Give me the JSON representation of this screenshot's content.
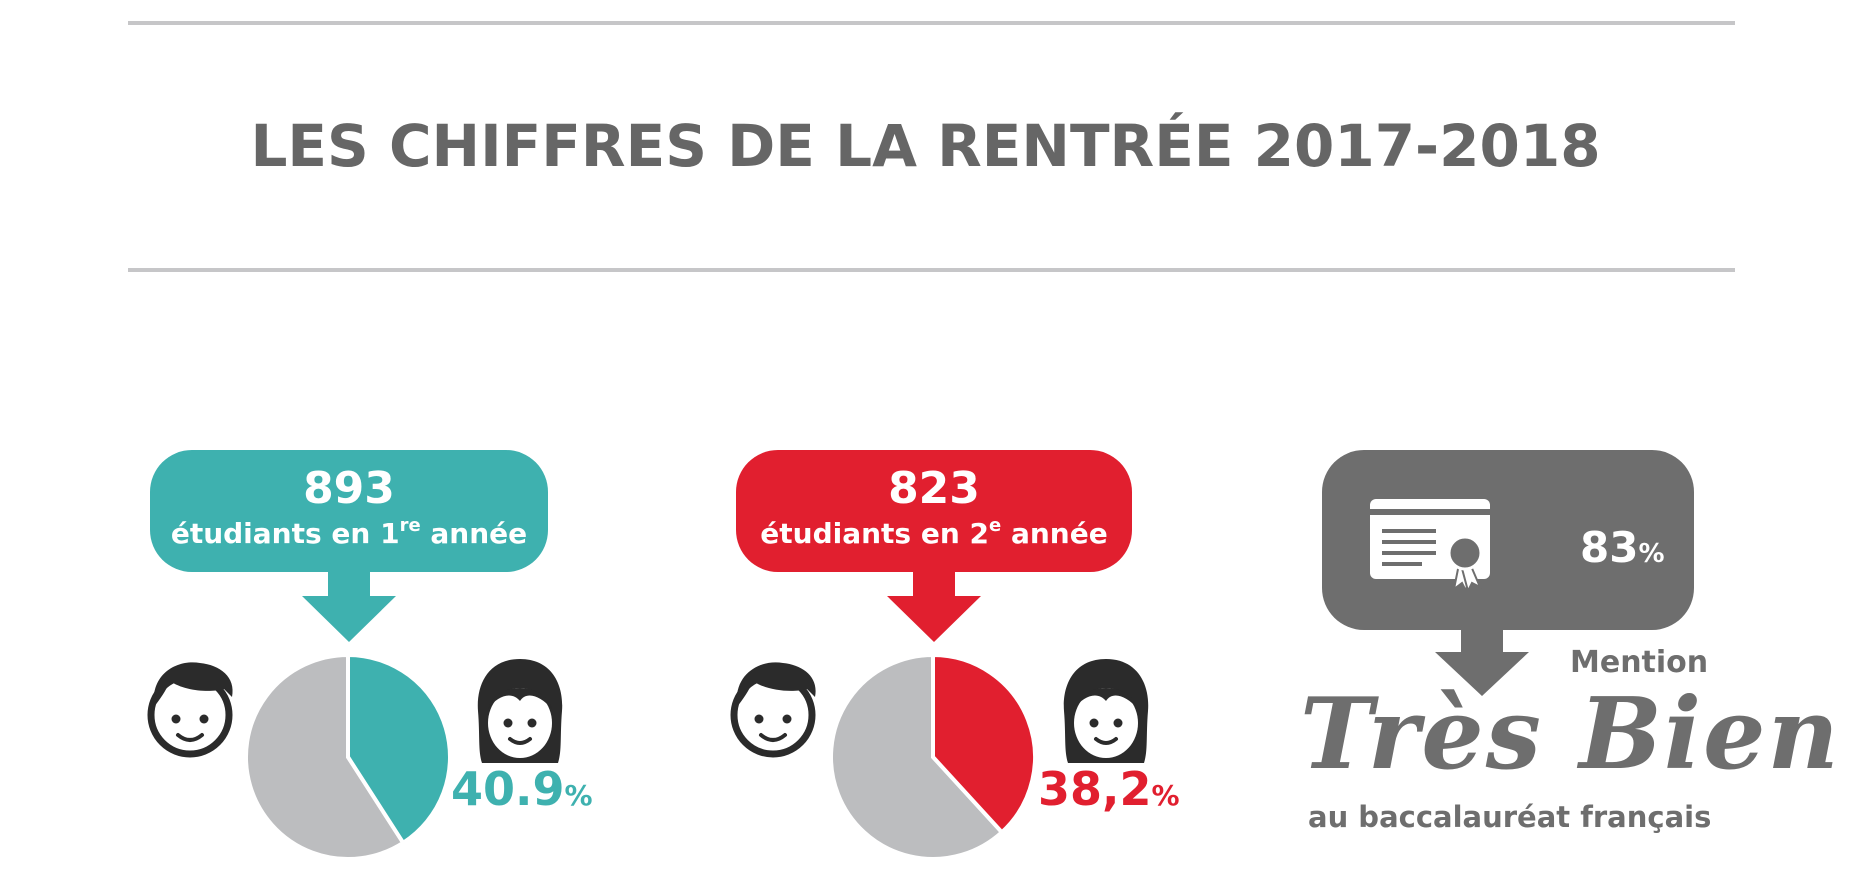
{
  "title": "LES CHIFFRES DE LA RENTRÉE 2017-2018",
  "colors": {
    "teal": "#3eb1af",
    "red": "#e11f2f",
    "gray": "#6e6e6e",
    "pie_other": "#bcbdbf",
    "rule": "#c6c6c8"
  },
  "panels": [
    {
      "count": "893",
      "label_pre": "étudiants en 1",
      "label_sup": "re",
      "label_post": " année",
      "percent": "40.9",
      "percent_unit": "%",
      "icons": [
        "boy-face-icon",
        "girl-face-icon"
      ]
    },
    {
      "count": "823",
      "label_pre": "étudiants en 2",
      "label_sup": "e",
      "label_post": " année",
      "percent": "38,2",
      "percent_unit": "%",
      "icons": [
        "boy-face-icon",
        "girl-face-icon"
      ]
    },
    {
      "percent": "83",
      "percent_unit": "%",
      "mention": "Mention",
      "tres_bien": "Très Bien",
      "bac": "au baccalauréat français",
      "icons": [
        "diploma-icon"
      ]
    }
  ],
  "chart_data": [
    {
      "type": "pie",
      "slices": [
        {
          "value": 40.9,
          "color": "#3eb1af"
        },
        {
          "value": 59.1,
          "color": "#bcbdbf"
        }
      ]
    },
    {
      "type": "pie",
      "slices": [
        {
          "value": 38.2,
          "color": "#e11f2f"
        },
        {
          "value": 61.8,
          "color": "#bcbdbf"
        }
      ]
    }
  ]
}
